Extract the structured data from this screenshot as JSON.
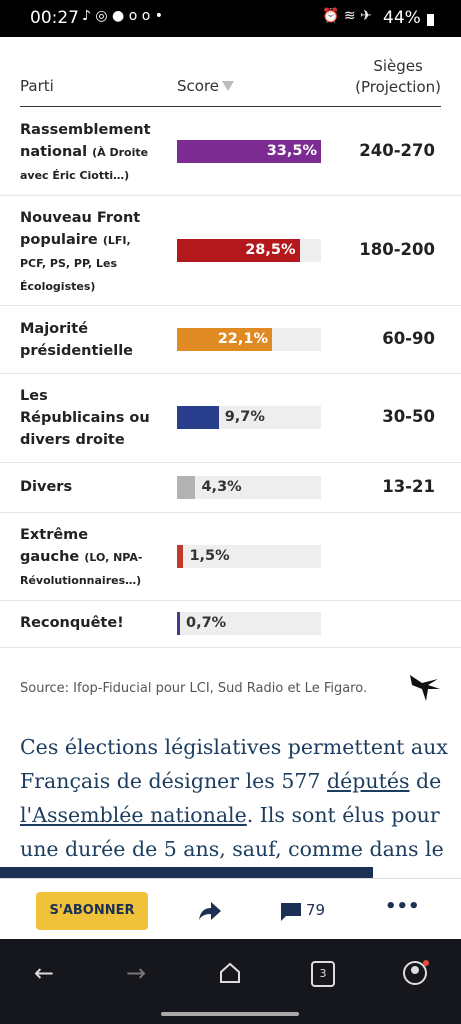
{
  "status_bar": {
    "time": "00:27",
    "battery": "44%"
  },
  "table": {
    "headers": {
      "party": "Parti",
      "score": "Score",
      "seats": [
        "Sièges",
        "(Projection)"
      ]
    },
    "rows": [
      {
        "party": "Rassemblement national",
        "detail": "(À Droite avec Éric Ciotti…)",
        "score": {
          "value": 33.5,
          "label": "33,5%"
        },
        "color": "#7b2b91",
        "seats": "240-270"
      },
      {
        "party": "Nouveau Front populaire",
        "detail": "(LFI, PCF, PS, PP, Les Écologistes)",
        "score": {
          "value": 28.5,
          "label": "28,5%"
        },
        "color": "#b3191c",
        "seats": "180-200"
      },
      {
        "party": "Majorité présidentielle",
        "score": {
          "value": 22.1,
          "label": "22,1%"
        },
        "color": "#e08a24",
        "seats": "60-90"
      },
      {
        "party": "Les Républicains ou divers droite",
        "score": {
          "value": 9.7,
          "label": "9,7%"
        },
        "color": "#2a3e8e",
        "seats": "30-50"
      },
      {
        "party": "Divers",
        "score": {
          "value": 4.3,
          "label": "4,3%"
        },
        "color": "#b3b3b3",
        "seats": "13-21"
      },
      {
        "party": "Extrême gauche",
        "detail": "(LO, NPA-Révolutionnaires…)",
        "score": {
          "value": 1.5,
          "label": "1,5%"
        },
        "color": "#c0392b"
      },
      {
        "party": "Reconquête!",
        "score": {
          "value": 0.7,
          "label": "0,7%"
        },
        "color": "#3d3f8a"
      }
    ]
  },
  "source": "Source: Ifop-Fiducial pour LCI, Sud Radio et Le Figaro.",
  "article": {
    "before": "Ces élections législatives permettent aux Français de désigner les 577 ",
    "link1": "députés",
    "middle": " de ",
    "link2": "l'Assemblée nationale",
    "after": ". Ils sont élus pour une durée de 5 ans, sauf, comme dans le"
  },
  "toolbar": {
    "subscribe": "S'ABONNER",
    "comments": "79",
    "tabs": "3"
  }
}
